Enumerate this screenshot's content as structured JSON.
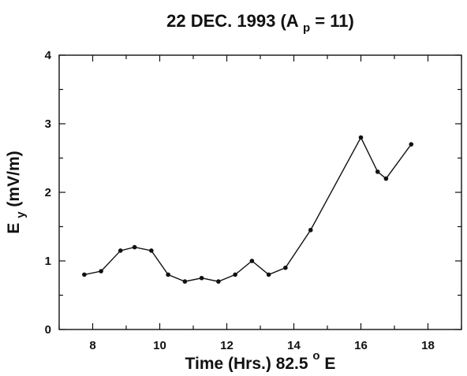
{
  "chart_data": {
    "type": "line",
    "title": {
      "prefix": "22 DEC. 1993",
      "open": "(A",
      "sub": "p",
      "rest": " = 11)"
    },
    "xlabel": {
      "text": "Time (Hrs.) 82.5",
      "sup": "o",
      "unit": "E"
    },
    "ylabel": {
      "main": "E",
      "sub": "y",
      "rest": " (mV/m)"
    },
    "xlim": [
      7,
      19
    ],
    "ylim": [
      0,
      4
    ],
    "x_ticks": [
      {
        "value": 8,
        "label": "8"
      },
      {
        "value": 10,
        "label": "10"
      },
      {
        "value": 12,
        "label": "12"
      },
      {
        "value": 14,
        "label": "14"
      },
      {
        "value": 16,
        "label": "16"
      },
      {
        "value": 18,
        "label": "18"
      }
    ],
    "x_minor_ticks": [
      7,
      9,
      11,
      13,
      15,
      17,
      19
    ],
    "y_ticks": [
      {
        "value": 0,
        "label": "0"
      },
      {
        "value": 1,
        "label": "1"
      },
      {
        "value": 2,
        "label": "2"
      },
      {
        "value": 3,
        "label": "3"
      },
      {
        "value": 4,
        "label": "4"
      }
    ],
    "y_minor_ticks": [
      0.5,
      1.5,
      2.5,
      3.5
    ],
    "grid": false,
    "series": [
      {
        "x": [
          7.75,
          8.25,
          8.83,
          9.25,
          9.75,
          10.25,
          10.75,
          11.25,
          11.75,
          12.25,
          12.75,
          13.25,
          13.75,
          14.5,
          16.0,
          16.5,
          16.75,
          17.5
        ],
        "y": [
          0.8,
          0.85,
          1.15,
          1.2,
          1.15,
          0.8,
          0.7,
          0.75,
          0.7,
          0.8,
          1.0,
          0.8,
          0.9,
          1.45,
          2.8,
          2.3,
          2.2,
          2.7
        ]
      }
    ]
  }
}
